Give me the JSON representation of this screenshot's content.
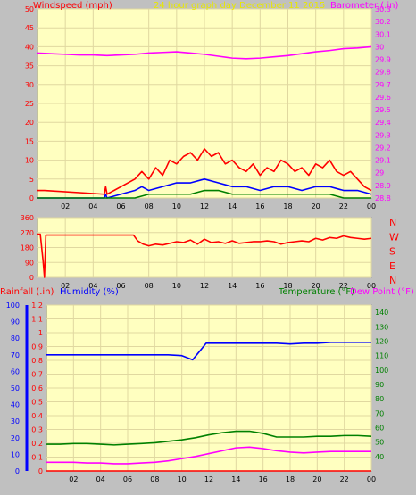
{
  "chart_data": [
    {
      "type": "line",
      "panel": "wind-barometer",
      "title": "24 hour graph day   December 11 2015",
      "left_axis_label": "Windspeed (mph)",
      "right_axis_label": "Barometer (.in)",
      "x_ticks": [
        "02",
        "04",
        "06",
        "08",
        "10",
        "12",
        "14",
        "16",
        "18",
        "20",
        "22",
        "00"
      ],
      "xlim": [
        0,
        24
      ],
      "ylim_left": [
        0,
        50
      ],
      "left_ticks": [
        0,
        5,
        10,
        15,
        20,
        25,
        30,
        35,
        40,
        45,
        50
      ],
      "ylim_right": [
        28.8,
        30.3
      ],
      "right_ticks": [
        "28.8",
        "28.9",
        "29",
        "29.1",
        "29.2",
        "29.3",
        "29.4",
        "29.5",
        "29.6",
        "29.7",
        "29.8",
        "29.9",
        "30",
        "30.1",
        "30.2",
        "30.3"
      ],
      "grid": true,
      "series": [
        {
          "axis": "right",
          "color": "#ff00ff",
          "x": [
            0,
            1,
            2,
            3,
            4,
            5,
            6,
            7,
            8,
            9,
            10,
            11,
            12,
            13,
            14,
            15,
            16,
            17,
            18,
            19,
            20,
            21,
            22,
            23,
            24
          ],
          "values": [
            29.95,
            29.945,
            29.94,
            29.935,
            29.935,
            29.93,
            29.935,
            29.94,
            29.95,
            29.955,
            29.96,
            29.95,
            29.94,
            29.925,
            29.91,
            29.905,
            29.91,
            29.92,
            29.93,
            29.945,
            29.96,
            29.97,
            29.985,
            29.99,
            30.0
          ]
        },
        {
          "axis": "left",
          "color": "#ff0000",
          "x": [
            0,
            0.3,
            0.4,
            0.5,
            4.8,
            4.9,
            5.0,
            7.0,
            7.5,
            8,
            8.5,
            9,
            9.5,
            10,
            10.5,
            11,
            11.5,
            12,
            12.5,
            13,
            13.5,
            14,
            14.5,
            15,
            15.5,
            16,
            16.5,
            17,
            17.5,
            18,
            18.5,
            19,
            19.5,
            20,
            20.5,
            21,
            21.5,
            22,
            22.5,
            23,
            23.5,
            24
          ],
          "values": [
            2,
            2,
            2,
            2,
            1,
            3,
            1,
            5,
            7,
            5,
            8,
            6,
            10,
            9,
            11,
            12,
            10,
            13,
            11,
            12,
            9,
            10,
            8,
            7,
            9,
            6,
            8,
            7,
            10,
            9,
            7,
            8,
            6,
            9,
            8,
            10,
            7,
            6,
            7,
            5,
            3,
            2
          ]
        },
        {
          "axis": "left",
          "color": "#0000ff",
          "x": [
            0,
            0.5,
            4.8,
            4.9,
            5.0,
            7.0,
            7.5,
            8,
            9,
            10,
            11,
            12,
            13,
            14,
            15,
            16,
            17,
            18,
            19,
            20,
            21,
            22,
            23,
            24
          ],
          "values": [
            0,
            0,
            0,
            1,
            0,
            2,
            3,
            2,
            3,
            4,
            4,
            5,
            4,
            3,
            3,
            2,
            3,
            3,
            2,
            3,
            3,
            2,
            2,
            1
          ]
        },
        {
          "axis": "left",
          "color": "#008000",
          "x": [
            0,
            7,
            8,
            9,
            10,
            11,
            12,
            13,
            14,
            15,
            16,
            17,
            18,
            19,
            20,
            21,
            22,
            24
          ],
          "values": [
            0,
            0,
            1,
            1,
            1,
            1,
            2,
            2,
            1,
            1,
            1,
            1,
            1,
            1,
            1,
            1,
            0,
            0
          ]
        }
      ]
    },
    {
      "type": "line",
      "panel": "wind-direction",
      "x_ticks": [
        "02",
        "04",
        "06",
        "08",
        "10",
        "12",
        "14",
        "16",
        "18",
        "20",
        "22",
        "00"
      ],
      "xlim": [
        0,
        24
      ],
      "ylim": [
        0,
        360
      ],
      "left_ticks": [
        0,
        90,
        180,
        270,
        360
      ],
      "right_labels": [
        "N",
        "W",
        "S",
        "E",
        "N"
      ],
      "grid": true,
      "series": [
        {
          "color": "#ff0000",
          "x": [
            0,
            0.2,
            0.4,
            0.5,
            0.6,
            1,
            2,
            4,
            6,
            6.9,
            7.2,
            7.6,
            8,
            8.5,
            9,
            9.5,
            10,
            10.5,
            11,
            11.5,
            12,
            12.5,
            13,
            13.5,
            14,
            14.5,
            15,
            15.5,
            16,
            16.5,
            17,
            17.5,
            18,
            18.5,
            19,
            19.5,
            20,
            20.5,
            21,
            21.5,
            22,
            22.5,
            23,
            23.5,
            24
          ],
          "values": [
            260,
            260,
            100,
            0,
            255,
            255,
            255,
            255,
            255,
            255,
            220,
            200,
            190,
            200,
            195,
            205,
            215,
            210,
            225,
            200,
            230,
            210,
            215,
            205,
            220,
            205,
            210,
            215,
            215,
            220,
            215,
            200,
            210,
            215,
            220,
            215,
            235,
            225,
            240,
            235,
            250,
            240,
            235,
            230,
            235
          ]
        }
      ]
    },
    {
      "type": "line",
      "panel": "rain-humidity-temperature",
      "rainfall_label": "Rainfall (.in)",
      "humidity_label": "Humidity (%)",
      "temperature_label": "Temperature (°F)",
      "dewpoint_label": "Dew Point (°F)",
      "x_ticks": [
        "02",
        "04",
        "06",
        "08",
        "10",
        "12",
        "14",
        "16",
        "18",
        "20",
        "22",
        "00"
      ],
      "xlim": [
        0,
        24
      ],
      "humidity_ylim": [
        0,
        100
      ],
      "humidity_ticks": [
        0,
        10,
        20,
        30,
        40,
        50,
        60,
        70,
        80,
        90,
        100
      ],
      "rain_ylim": [
        0,
        1.2
      ],
      "rain_ticks": [
        "0",
        "0.1",
        "0.2",
        "0.3",
        "0.4",
        "0.5",
        "0.6",
        "0.7",
        "0.8",
        "0.9",
        "1",
        "1.1",
        "1.2"
      ],
      "temp_ylim": [
        30,
        145
      ],
      "temp_ticks": [
        40,
        50,
        60,
        70,
        80,
        90,
        100,
        110,
        120,
        130,
        140
      ],
      "grid": true,
      "series": [
        {
          "axis": "humidity",
          "color": "#0000ff",
          "x": [
            0,
            2,
            4,
            6,
            8,
            9,
            10,
            10.8,
            11.2,
            11.5,
            11.8,
            12,
            13,
            14,
            15,
            16,
            17,
            18,
            19,
            20,
            21,
            22,
            23,
            24
          ],
          "values": [
            70,
            70,
            70,
            70,
            70,
            70,
            69.5,
            67,
            71,
            74,
            77,
            77,
            77,
            77,
            77,
            77,
            77,
            76.5,
            77,
            77,
            77.5,
            77.5,
            77.5,
            77.5
          ]
        },
        {
          "axis": "temperature",
          "color": "#008000",
          "x": [
            0,
            1,
            2,
            3,
            4,
            5,
            6,
            7,
            8,
            9,
            10,
            11,
            12,
            13,
            14,
            15,
            16,
            17,
            18,
            19,
            20,
            21,
            22,
            23,
            24
          ],
          "values": [
            48.5,
            48.5,
            49,
            49,
            48.5,
            48,
            48.5,
            49,
            49.5,
            50.5,
            51.5,
            53,
            55,
            56.5,
            57.5,
            57.5,
            56,
            53.5,
            53.5,
            53.5,
            54,
            54,
            54.5,
            54.5,
            54
          ]
        },
        {
          "axis": "temperature",
          "color": "#ff00ff",
          "x": [
            0,
            1,
            2,
            3,
            4,
            5,
            6,
            7,
            8,
            9,
            10,
            11,
            12,
            13,
            14,
            15,
            16,
            17,
            18,
            19,
            20,
            21,
            22,
            23,
            24
          ],
          "values": [
            36,
            36,
            36,
            35.5,
            35.5,
            35,
            35,
            35.5,
            36,
            37,
            38.5,
            40,
            42,
            44,
            46,
            46.5,
            45.5,
            44,
            43,
            42.5,
            43,
            43.5,
            43.5,
            43.5,
            43.5
          ]
        },
        {
          "axis": "rain",
          "color": "#ff0000",
          "x": [
            0,
            24
          ],
          "values": [
            0,
            0
          ]
        }
      ]
    }
  ]
}
